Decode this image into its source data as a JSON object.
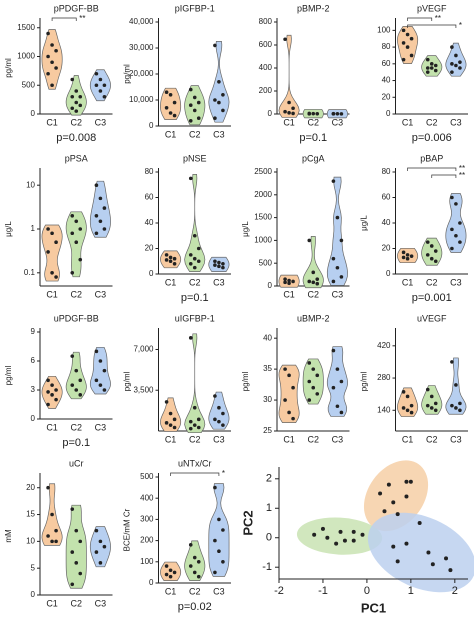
{
  "chart_data": [
    {
      "type": "violin",
      "title": "pPDGF-BB",
      "ylabel": "pg/ml",
      "categories": [
        "C1",
        "C2",
        "C3"
      ],
      "ylim": [
        0,
        1600
      ],
      "yticks": [
        0,
        500,
        1000,
        1500
      ],
      "series": [
        {
          "color": "#f7caa0",
          "values": [
            1400,
            1200,
            1100,
            1000,
            900,
            800,
            700,
            500
          ]
        },
        {
          "color": "#c3e2ad",
          "values": [
            600,
            400,
            300,
            300,
            200,
            150,
            100,
            50
          ]
        },
        {
          "color": "#b7cff0",
          "values": [
            700,
            600,
            500,
            500,
            400,
            300
          ]
        }
      ],
      "brackets": [
        {
          "label": "**",
          "groups": [
            0,
            1
          ]
        }
      ],
      "p_value": "p=0.008"
    },
    {
      "type": "violin",
      "title": "pIGFBP-1",
      "ylabel": "pg/ml",
      "categories": [
        "C1",
        "C2",
        "C3"
      ],
      "ylim": [
        0,
        40000
      ],
      "yticks": [
        0,
        {
          "value": 10000,
          "label": "10,000"
        },
        {
          "value": 20000,
          "label": "20,000"
        },
        {
          "value": 30000,
          "label": "30,000"
        },
        {
          "value": 40000,
          "label": "40,000"
        }
      ],
      "series": [
        {
          "color": "#f7caa0",
          "values": [
            13000,
            12000,
            9000,
            7000,
            5000,
            4000
          ]
        },
        {
          "color": "#c3e2ad",
          "values": [
            14000,
            11000,
            9000,
            8000,
            6000,
            3000,
            2000
          ]
        },
        {
          "color": "#b7cff0",
          "values": [
            31000,
            17000,
            12000,
            10000,
            9000,
            6000,
            3000
          ]
        }
      ]
    },
    {
      "type": "violin",
      "title": "pBMP-2",
      "categories": [
        "C1",
        "C2",
        "C3"
      ],
      "ylim": [
        0,
        800
      ],
      "yticks": [
        0,
        200,
        400,
        600,
        800
      ],
      "series": [
        {
          "color": "#f7caa0",
          "values": [
            650,
            100,
            50,
            20,
            10,
            5
          ]
        },
        {
          "color": "#c3e2ad",
          "values": [
            5,
            3,
            2,
            1
          ]
        },
        {
          "color": "#b7cff0",
          "values": [
            3,
            2,
            1,
            1
          ]
        }
      ],
      "p_value": "p=0.1"
    },
    {
      "type": "violin",
      "title": "pVEGF",
      "categories": [
        "C1",
        "C2",
        "C3"
      ],
      "ylim": [
        0,
        110
      ],
      "yticks": [
        0,
        20,
        40,
        60,
        80,
        100
      ],
      "series": [
        {
          "color": "#f7caa0",
          "values": [
            100,
            95,
            90,
            85,
            80,
            70,
            65
          ]
        },
        {
          "color": "#c3e2ad",
          "values": [
            65,
            60,
            58,
            55,
            55,
            52,
            50
          ]
        },
        {
          "color": "#b7cff0",
          "values": [
            80,
            70,
            62,
            60,
            58,
            55,
            50
          ]
        }
      ],
      "brackets": [
        {
          "label": "**",
          "groups": [
            0,
            1
          ]
        },
        {
          "label": "*",
          "groups": [
            0,
            2
          ]
        }
      ],
      "p_value": "p=0.006"
    },
    {
      "type": "violin",
      "title": "pPSA",
      "ylabel": "μg/L",
      "log": true,
      "categories": [
        "C1",
        "C2",
        "C3"
      ],
      "ylim": [
        0.05,
        20
      ],
      "yticks": [
        0.1,
        1,
        10
      ],
      "series": [
        {
          "color": "#f7caa0",
          "values": [
            1,
            0.8,
            0.5,
            0.3,
            0.1,
            0.08
          ]
        },
        {
          "color": "#c3e2ad",
          "values": [
            2,
            1.5,
            1,
            0.8,
            0.5,
            0.2,
            0.1
          ]
        },
        {
          "color": "#b7cff0",
          "values": [
            10,
            5,
            3,
            2,
            1.5,
            1,
            0.8
          ]
        }
      ]
    },
    {
      "type": "violin",
      "title": "pNSE",
      "categories": [
        "C1",
        "C2",
        "C3"
      ],
      "ylim": [
        0,
        80
      ],
      "yticks": [
        0,
        20,
        40,
        60,
        80
      ],
      "series": [
        {
          "color": "#f7caa0",
          "values": [
            15,
            13,
            12,
            11,
            10,
            8
          ]
        },
        {
          "color": "#c3e2ad",
          "values": [
            75,
            30,
            20,
            15,
            12,
            10,
            8,
            5
          ]
        },
        {
          "color": "#b7cff0",
          "values": [
            10,
            9,
            8,
            7,
            6,
            5
          ]
        }
      ],
      "p_value": "p=0.1"
    },
    {
      "type": "violin",
      "title": "pCgA",
      "ylabel": "μg/L",
      "categories": [
        "C1",
        "C2",
        "C3"
      ],
      "ylim": [
        0,
        2500
      ],
      "yticks": [
        0,
        500,
        1000,
        1500,
        2000,
        2500
      ],
      "series": [
        {
          "color": "#f7caa0",
          "values": [
            150,
            120,
            100,
            80,
            60
          ]
        },
        {
          "color": "#c3e2ad",
          "values": [
            1000,
            300,
            150,
            100,
            80,
            50
          ]
        },
        {
          "color": "#b7cff0",
          "values": [
            2300,
            1500,
            1000,
            600,
            400,
            200,
            100
          ]
        }
      ]
    },
    {
      "type": "violin",
      "title": "pBAP",
      "ylabel": "μg/L",
      "categories": [
        "C1",
        "C2",
        "C3"
      ],
      "ylim": [
        0,
        80
      ],
      "yticks": [
        0,
        20,
        40,
        60,
        80
      ],
      "series": [
        {
          "color": "#f7caa0",
          "values": [
            17,
            15,
            14,
            13,
            12
          ]
        },
        {
          "color": "#c3e2ad",
          "values": [
            25,
            22,
            18,
            15,
            12,
            10
          ]
        },
        {
          "color": "#b7cff0",
          "values": [
            60,
            55,
            40,
            35,
            30,
            25,
            20
          ]
        }
      ],
      "brackets": [
        {
          "label": "**",
          "groups": [
            0,
            2
          ]
        },
        {
          "label": "**",
          "groups": [
            1,
            2
          ]
        }
      ],
      "p_value": "p=0.001"
    },
    {
      "type": "violin",
      "title": "uPDGF-BB",
      "ylabel": "pg/ml",
      "categories": [
        "C1",
        "C2",
        "C3"
      ],
      "ylim": [
        0,
        9
      ],
      "yticks": [
        0,
        3,
        6,
        9
      ],
      "series": [
        {
          "color": "#f7caa0",
          "values": [
            4,
            3.5,
            3,
            2.8,
            2.5,
            2,
            1.5
          ]
        },
        {
          "color": "#c3e2ad",
          "values": [
            6.5,
            5,
            4,
            3.5,
            3,
            2.5
          ]
        },
        {
          "color": "#b7cff0",
          "values": [
            7,
            6,
            5,
            4,
            3.5,
            3
          ]
        }
      ],
      "p_value": "p=0.1"
    },
    {
      "type": "violin",
      "title": "uIGFBP-1",
      "ylabel": "pg/ml",
      "categories": [
        "C1",
        "C2",
        "C3"
      ],
      "ylim": [
        0,
        8500
      ],
      "yticks": [
        {
          "value": 3500,
          "label": "3,500"
        },
        {
          "value": 7000,
          "label": "7,000"
        }
      ],
      "series": [
        {
          "color": "#f7caa0",
          "values": [
            2500,
            1500,
            1000,
            700,
            500,
            300
          ]
        },
        {
          "color": "#c3e2ad",
          "values": [
            8000,
            2000,
            1000,
            800,
            500,
            300,
            200
          ]
        },
        {
          "color": "#b7cff0",
          "values": [
            3000,
            2000,
            1500,
            1000,
            800,
            500
          ]
        }
      ]
    },
    {
      "type": "violin",
      "title": "uBMP-2",
      "ylabel": "pg/ml",
      "categories": [
        "C1",
        "C2",
        "C3"
      ],
      "ylim": [
        25,
        41
      ],
      "yticks": [
        25,
        30,
        35,
        40
      ],
      "series": [
        {
          "color": "#f7caa0",
          "values": [
            35,
            34,
            32,
            30,
            28,
            27
          ]
        },
        {
          "color": "#c3e2ad",
          "values": [
            36,
            35,
            34,
            33,
            32,
            31,
            30
          ]
        },
        {
          "color": "#b7cff0",
          "values": [
            38,
            35,
            33,
            32,
            29,
            28
          ]
        }
      ]
    },
    {
      "type": "violin",
      "title": "uVEGF",
      "ylabel": "pg/ml",
      "categories": [
        "C1",
        "C2",
        "C3"
      ],
      "ylim": [
        50,
        480
      ],
      "yticks": [
        140,
        280,
        420
      ],
      "series": [
        {
          "color": "#f7caa0",
          "values": [
            220,
            200,
            160,
            150,
            140,
            130
          ]
        },
        {
          "color": "#c3e2ad",
          "values": [
            230,
            200,
            170,
            160,
            150,
            140
          ]
        },
        {
          "color": "#b7cff0",
          "values": [
            350,
            250,
            170,
            160,
            150,
            140
          ]
        }
      ]
    },
    {
      "type": "violin",
      "title": "uCr",
      "ylabel": "mM",
      "categories": [
        "C1",
        "C2",
        "C3"
      ],
      "ylim": [
        0,
        22
      ],
      "yticks": [
        0,
        5,
        10,
        15,
        20
      ],
      "series": [
        {
          "color": "#f7caa0",
          "values": [
            20,
            15,
            12,
            11,
            10,
            10
          ]
        },
        {
          "color": "#c3e2ad",
          "values": [
            16,
            12,
            10,
            8,
            6,
            4,
            2
          ]
        },
        {
          "color": "#b7cff0",
          "values": [
            12,
            10,
            9,
            8,
            6
          ]
        }
      ]
    },
    {
      "type": "violin",
      "title": "uNTx/Cr",
      "ylabel": "BCE/mM Cr",
      "categories": [
        "C1",
        "C2",
        "C3"
      ],
      "ylim": [
        0,
        500
      ],
      "yticks": [
        0,
        100,
        200,
        300,
        400,
        500
      ],
      "series": [
        {
          "color": "#f7caa0",
          "values": [
            80,
            60,
            50,
            40,
            30
          ]
        },
        {
          "color": "#c3e2ad",
          "values": [
            180,
            120,
            100,
            80,
            50,
            30
          ]
        },
        {
          "color": "#b7cff0",
          "values": [
            450,
            300,
            250,
            200,
            150,
            100,
            50
          ]
        }
      ],
      "brackets": [
        {
          "label": "*",
          "groups": [
            0,
            2
          ]
        }
      ],
      "p_value": "p=0.02"
    },
    {
      "type": "scatter",
      "xlabel": "PC1",
      "ylabel": "PC2",
      "xlim": [
        -2,
        2.3
      ],
      "ylim": [
        -1.4,
        2.4
      ],
      "xticks": [
        -2,
        -1,
        0,
        1,
        2
      ],
      "yticks": [
        -1,
        0,
        1,
        2
      ],
      "series": [
        {
          "color": "#c9e3b3",
          "x": [
            -1.2,
            -1,
            -0.9,
            -0.7,
            -0.6,
            -0.5,
            -0.3,
            -0.3,
            -0.1
          ],
          "y": [
            0.1,
            0.3,
            0,
            -0.2,
            0.2,
            -0.1,
            -0.1,
            0.2,
            0.1
          ]
        },
        {
          "color": "#f6cfa6",
          "x": [
            0.3,
            0.5,
            0.6,
            0.7,
            0.9,
            1,
            0.9,
            0.4
          ],
          "y": [
            1.5,
            1.8,
            1.2,
            0.8,
            1.9,
            1.9,
            1.4,
            0.9
          ]
        },
        {
          "color": "#bcd0ee",
          "x": [
            0.6,
            0.7,
            1.2,
            1.5,
            1.8,
            1.9,
            1.4,
            0.9
          ],
          "y": [
            -0.3,
            -0.8,
            0.5,
            -0.9,
            -0.7,
            -1.1,
            -0.5,
            -0.2
          ]
        }
      ]
    }
  ]
}
